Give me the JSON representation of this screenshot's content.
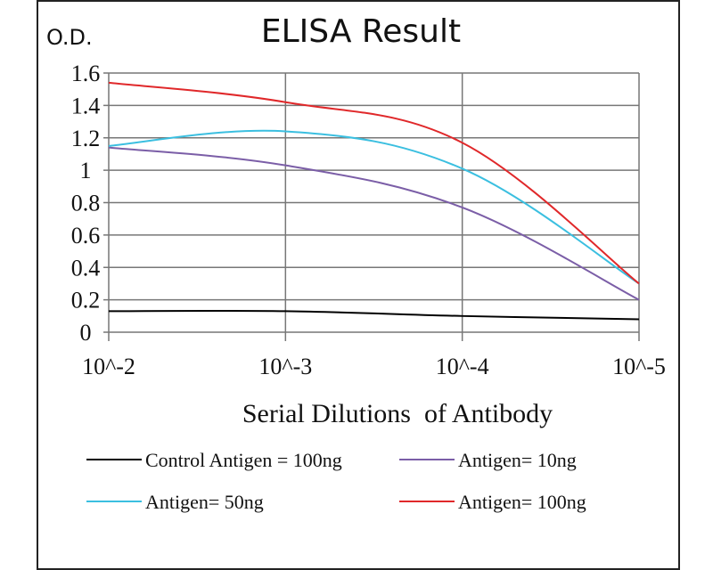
{
  "chart_data": {
    "type": "line",
    "title": "ELISA Result",
    "ylabel": "O.D.",
    "xlabel": "Serial Dilutions  of Antibody",
    "categories": [
      "10^-2",
      "10^-3",
      "10^-4",
      "10^-5"
    ],
    "ylim": [
      0,
      1.6
    ],
    "yticks": [
      "0",
      "0.2",
      "0.4",
      "0.6",
      "0.8",
      "1",
      "1.2",
      "1.4",
      "1.6"
    ],
    "grid": true,
    "legend_position": "bottom",
    "series": [
      {
        "name": "Control Antigen = 100ng",
        "color": "#000000",
        "values": [
          0.13,
          0.13,
          0.1,
          0.08
        ]
      },
      {
        "name": "Antigen= 10ng",
        "color": "#7b5ea7",
        "values": [
          1.14,
          1.03,
          0.77,
          0.2
        ]
      },
      {
        "name": "Antigen= 50ng",
        "color": "#3bbfe0",
        "values": [
          1.15,
          1.24,
          1.01,
          0.3
        ]
      },
      {
        "name": "Antigen= 100ng",
        "color": "#e0282a",
        "values": [
          1.54,
          1.42,
          1.17,
          0.3
        ]
      }
    ]
  }
}
